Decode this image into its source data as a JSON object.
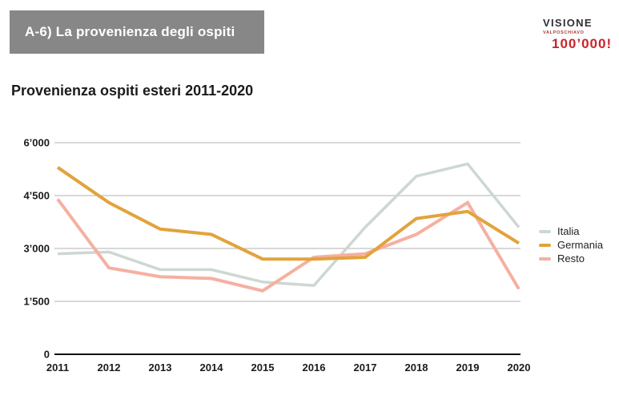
{
  "header": {
    "title": "A-6) La provenienza degli ospiti"
  },
  "logo": {
    "brand": "VISIONE",
    "sub_brand": "VALPOSCHIAVO",
    "slogan": "100’000!",
    "brand_color": "#2f2f31",
    "accent_color": "#c9242b"
  },
  "chart_data": {
    "type": "line",
    "title": "Provenienza ospiti esteri 2011-2020",
    "categories": [
      "2011",
      "2012",
      "2013",
      "2014",
      "2015",
      "2016",
      "2017",
      "2018",
      "2019",
      "2020"
    ],
    "series": [
      {
        "name": "Italia",
        "color": "#ccd8d1",
        "values": [
          2850,
          2900,
          2400,
          2400,
          2050,
          1950,
          3600,
          5050,
          5400,
          3600
        ]
      },
      {
        "name": "Germania",
        "color": "#e2a33c",
        "values": [
          5300,
          4300,
          3550,
          3400,
          2700,
          2700,
          2750,
          3850,
          4050,
          3150
        ]
      },
      {
        "name": "Resto",
        "color": "#f5b0a1",
        "values": [
          4400,
          2450,
          2200,
          2150,
          1800,
          2750,
          2850,
          3400,
          4300,
          1850
        ]
      }
    ],
    "y_ticks": [
      0,
      1500,
      3000,
      4500,
      6000
    ],
    "y_tick_labels": [
      "0",
      "1’500",
      "3’000",
      "4’500",
      "6’000"
    ],
    "ylim": [
      0,
      6300
    ],
    "xlabel": "",
    "ylabel": "",
    "grid": "horizontal",
    "grid_color": "#b3b3b3",
    "axis_color": "#111111",
    "legend_position": "right",
    "draw_order": [
      0,
      2,
      1
    ]
  }
}
